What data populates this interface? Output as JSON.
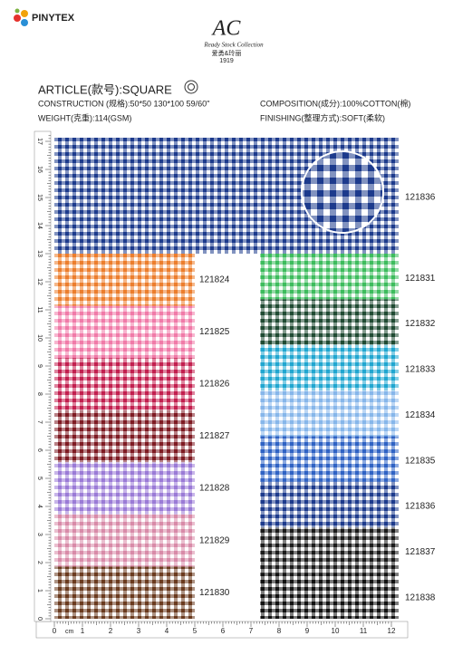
{
  "brand": {
    "name": "PINYTEX"
  },
  "collection": {
    "mark": "AC",
    "subtitle": "Ready Stock Collection",
    "chinese": "爱勇&玲丽",
    "year": "1919"
  },
  "article": {
    "title": "ARTICLE(款号):SQUARE",
    "construction": "CONSTRUCTION (规格):50*50 130*100 59/60\"",
    "weight": "WEIGHT(克重):114(GSM)",
    "composition": "COMPOSITION(成分):100%COTTON(棉)",
    "finishing": "FINISHING(整理方式):SOFT(柔软)"
  },
  "main_swatch": {
    "code": "121836",
    "color": "#1c3a8c"
  },
  "left_swatches": [
    {
      "code": "121824",
      "color": "#ec7d2c"
    },
    {
      "code": "121825",
      "color": "#f07aa8"
    },
    {
      "code": "121826",
      "color": "#c21e4e"
    },
    {
      "code": "121827",
      "color": "#7e1a22"
    },
    {
      "code": "121828",
      "color": "#9a7ad6"
    },
    {
      "code": "121829",
      "color": "#d88aa8"
    },
    {
      "code": "121830",
      "color": "#6a3a1e"
    }
  ],
  "right_swatches": [
    {
      "code": "121831",
      "color": "#3cbc5c"
    },
    {
      "code": "121832",
      "color": "#1f4a32"
    },
    {
      "code": "121833",
      "color": "#1fa6d0"
    },
    {
      "code": "121834",
      "color": "#86b6ea"
    },
    {
      "code": "121835",
      "color": "#2e62c4"
    },
    {
      "code": "121836",
      "color": "#1c3a8c"
    },
    {
      "code": "121837",
      "color": "#1a1a1a"
    },
    {
      "code": "121838",
      "color": "#111111"
    }
  ],
  "ruler": {
    "unit": "cm",
    "bottom_labels": [
      "0",
      "1",
      "2",
      "3",
      "4",
      "5",
      "6",
      "7",
      "8",
      "9",
      "10",
      "11",
      "12"
    ],
    "left_labels": [
      "0",
      "1",
      "2",
      "3",
      "4",
      "5",
      "6",
      "7",
      "8",
      "9",
      "10",
      "11",
      "12",
      "13",
      "14",
      "15",
      "16",
      "17"
    ]
  }
}
